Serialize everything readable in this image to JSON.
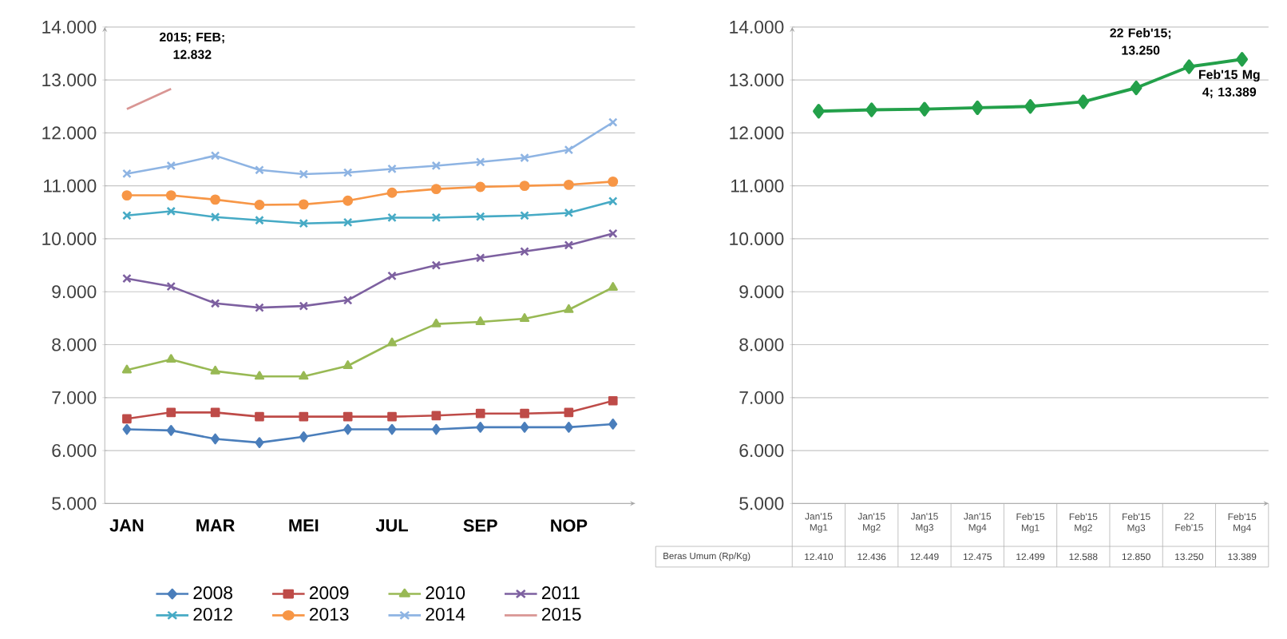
{
  "chart_data": [
    {
      "type": "line",
      "categories": [
        "JAN",
        null,
        "MAR",
        null,
        "MEI",
        null,
        "JUL",
        null,
        "SEP",
        null,
        "NOP",
        null
      ],
      "ylim": [
        5000,
        14000
      ],
      "yticks": [
        {
          "value": 5000,
          "label": "5.000"
        },
        {
          "value": 6000,
          "label": "6.000"
        },
        {
          "value": 7000,
          "label": "7.000"
        },
        {
          "value": 8000,
          "label": "8.000"
        },
        {
          "value": 9000,
          "label": "9.000"
        },
        {
          "value": 10000,
          "label": "10.000"
        },
        {
          "value": 11000,
          "label": "11.000"
        },
        {
          "value": 12000,
          "label": "12.000"
        },
        {
          "value": 13000,
          "label": "13.000"
        },
        {
          "value": 14000,
          "label": "14.000"
        }
      ],
      "grid": "y",
      "legend": "bottom",
      "annotations": [
        "2015; FEB; 12.832"
      ],
      "series": [
        {
          "name": "2008",
          "color": "#4a7ebb",
          "marker": "diamond",
          "values": [
            6400,
            6380,
            6220,
            6150,
            6260,
            6400,
            6400,
            6400,
            6440,
            6440,
            6440,
            6500
          ]
        },
        {
          "name": "2009",
          "color": "#be4b48",
          "marker": "square",
          "values": [
            6600,
            6720,
            6720,
            6640,
            6640,
            6640,
            6640,
            6660,
            6700,
            6700,
            6720,
            6940
          ]
        },
        {
          "name": "2010",
          "color": "#98b954",
          "marker": "triangle",
          "values": [
            7520,
            7720,
            7500,
            7400,
            7400,
            7600,
            8030,
            8390,
            8430,
            8490,
            8660,
            9080
          ]
        },
        {
          "name": "2011",
          "color": "#7d60a0",
          "marker": "cross",
          "values": [
            9250,
            9100,
            8780,
            8700,
            8730,
            8840,
            9300,
            9500,
            9640,
            9760,
            9880,
            10100
          ]
        },
        {
          "name": "2012",
          "color": "#46aac5",
          "marker": "cross",
          "values": [
            10440,
            10520,
            10410,
            10350,
            10290,
            10310,
            10400,
            10400,
            10420,
            10440,
            10490,
            10710
          ]
        },
        {
          "name": "2013",
          "color": "#f79646",
          "marker": "circle",
          "values": [
            10820,
            10820,
            10740,
            10640,
            10650,
            10720,
            10870,
            10940,
            10980,
            11000,
            11020,
            11080
          ]
        },
        {
          "name": "2014",
          "color": "#8eb4e3",
          "marker": "cross",
          "values": [
            11230,
            11380,
            11570,
            11300,
            11220,
            11250,
            11320,
            11380,
            11450,
            11530,
            11680,
            12200
          ]
        },
        {
          "name": "2015",
          "color": "#d99694",
          "marker": "none",
          "values": [
            12450,
            12832,
            null,
            null,
            null,
            null,
            null,
            null,
            null,
            null,
            null,
            null
          ]
        }
      ]
    },
    {
      "type": "line",
      "categories": [
        "Jan'15 Mg1",
        "Jan'15 Mg2",
        "Jan'15 Mg3",
        "Jan'15 Mg4",
        "Feb'15 Mg1",
        "Feb'15 Mg2",
        "Feb'15 Mg3",
        "22 Feb'15",
        "Feb'15 Mg4"
      ],
      "ylim": [
        5000,
        14000
      ],
      "yticks": [
        {
          "value": 5000,
          "label": "5.000"
        },
        {
          "value": 6000,
          "label": "6.000"
        },
        {
          "value": 7000,
          "label": "7.000"
        },
        {
          "value": 8000,
          "label": "8.000"
        },
        {
          "value": 9000,
          "label": "9.000"
        },
        {
          "value": 10000,
          "label": "10.000"
        },
        {
          "value": 11000,
          "label": "11.000"
        },
        {
          "value": 12000,
          "label": "12.000"
        },
        {
          "value": 13000,
          "label": "13.000"
        },
        {
          "value": 14000,
          "label": "14.000"
        }
      ],
      "grid": "y",
      "marker": "diamond",
      "annotations": [
        {
          "text": "22 Feb'15; 13.250",
          "x": "22 Feb'15",
          "y": 13250
        },
        {
          "text": "Feb'15 Mg 4; 13.389",
          "x": "Feb'15 Mg4",
          "y": 13389
        }
      ],
      "series": [
        {
          "name": "Beras Umum (Rp/Kg)",
          "color": "#23a04a",
          "values": [
            12410,
            12436,
            12449,
            12475,
            12499,
            12588,
            12850,
            13250,
            13389
          ],
          "value_labels": [
            "12.410",
            "12.436",
            "12.449",
            "12.475",
            "12.499",
            "12.588",
            "12.850",
            "13.250",
            "13.389"
          ]
        }
      ]
    }
  ]
}
